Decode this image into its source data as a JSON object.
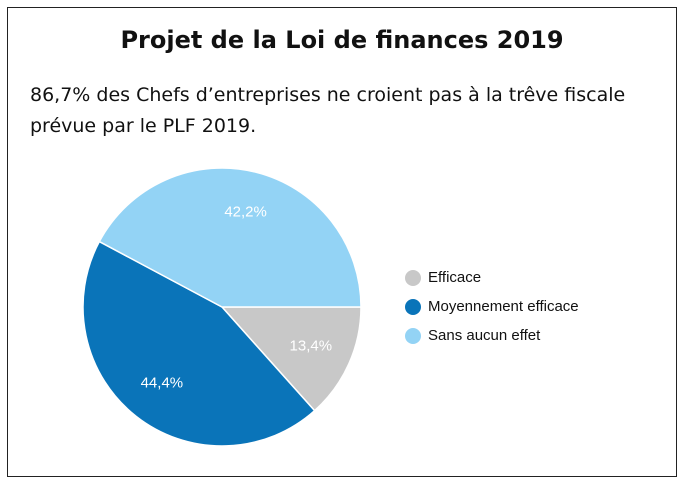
{
  "chart_data": {
    "type": "pie",
    "title": "Projet de la Loi de finances 2019",
    "subtitle": "86,7% des Chefs d’entreprises ne croient pas à la trêve fiscale prévue par le PLF 2019.",
    "categories": [
      "Efficace",
      "Moyennement efficace",
      "Sans aucun effet"
    ],
    "values": [
      13.4,
      44.4,
      42.2
    ],
    "value_labels": [
      "13,4%",
      "44,4%",
      "42,2%"
    ],
    "colors": [
      "#c8c8c8",
      "#0a74b9",
      "#93d3f5"
    ],
    "legend": "right"
  }
}
